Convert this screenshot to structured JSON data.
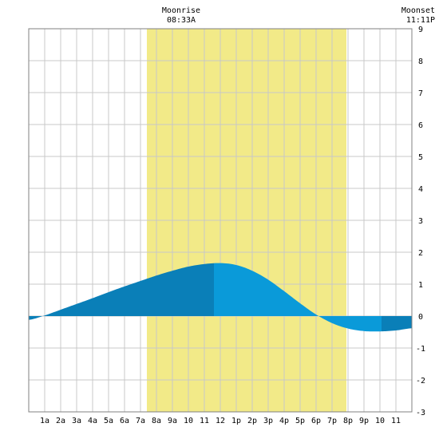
{
  "chart_data": {
    "type": "area",
    "title": "",
    "xlabel": "",
    "ylabel": "",
    "x_tick_labels": [
      "1a",
      "2a",
      "3a",
      "4a",
      "5a",
      "6a",
      "7a",
      "8a",
      "9a",
      "10",
      "11",
      "12",
      "1p",
      "2p",
      "3p",
      "4p",
      "5p",
      "6p",
      "7p",
      "8p",
      "9p",
      "10",
      "11"
    ],
    "x_range_hours": [
      -1,
      23
    ],
    "y_ticks": [
      9,
      8,
      7,
      6,
      5,
      4,
      3,
      2,
      1,
      0,
      -1,
      -2,
      -3
    ],
    "ylim": [
      -3,
      9
    ],
    "grid": true,
    "daylight_band_hours": [
      6.4,
      18.9
    ],
    "moonrise": {
      "label": "Moonrise",
      "time": "08:33A",
      "hour": 8.55
    },
    "moonset": {
      "label": "Moonset",
      "time": "11:11P",
      "hour": 23.18
    },
    "series": [
      {
        "values_hours": [
          -1,
          0,
          1,
          2,
          3,
          4,
          5,
          6,
          7,
          8,
          9,
          10,
          11,
          12,
          13,
          14,
          15,
          16,
          17,
          18,
          19,
          20,
          21,
          22,
          23
        ],
        "values_height": [
          -0.12,
          0.02,
          0.2,
          0.38,
          0.56,
          0.75,
          0.93,
          1.1,
          1.27,
          1.42,
          1.55,
          1.63,
          1.66,
          1.6,
          1.42,
          1.14,
          0.78,
          0.4,
          0.05,
          -0.22,
          -0.39,
          -0.47,
          -0.48,
          -0.45,
          -0.38
        ]
      }
    ],
    "segment_breaks_hours": [
      10.6,
      21.1
    ],
    "colors": {
      "daylight": "#f2ea88",
      "tide_dark": "#0a7fb8",
      "tide_light": "#0a9ad9",
      "grid": "#c8c8c8",
      "plot_bg": "#ffffff"
    }
  }
}
